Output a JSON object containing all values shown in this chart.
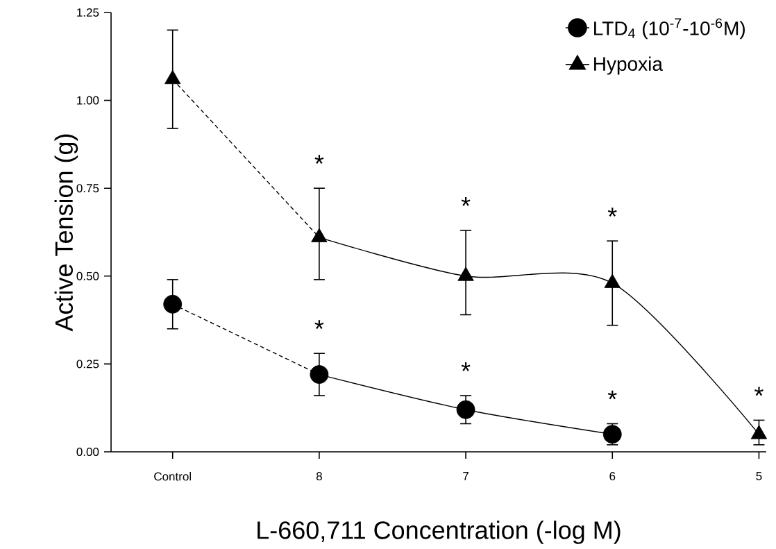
{
  "chart_data": {
    "type": "scatter",
    "xlabel": "L-660,711 Concentration (-log M)",
    "ylabel": "Active Tension (g)",
    "categories": [
      "Control",
      "8",
      "7",
      "6",
      "5"
    ],
    "ylim": [
      0,
      1.25
    ],
    "yticks": [
      {
        "value": 0,
        "label": "0.00"
      },
      {
        "value": 0.25,
        "label": "0.25"
      },
      {
        "value": 0.5,
        "label": "0.50"
      },
      {
        "value": 0.75,
        "label": "0.75"
      },
      {
        "value": 1.0,
        "label": "1.00"
      },
      {
        "value": 1.25,
        "label": "1.25"
      }
    ],
    "series": [
      {
        "name": "LTD$_{4}$ (10$^{-7}$-10$^{-6}$M)",
        "color": "#000000",
        "marker": "circle",
        "values": [
          0.42,
          0.22,
          0.12,
          0.05,
          null
        ],
        "errors": [
          [
            0.35,
            0.49
          ],
          [
            0.16,
            0.28
          ],
          [
            0.08,
            0.16
          ],
          [
            0.02,
            0.08
          ],
          null
        ]
      },
      {
        "name": "Hypoxia",
        "color": "#000000",
        "marker": "triangle",
        "values": [
          1.06,
          0.61,
          0.5,
          0.48,
          0.05
        ],
        "errors": [
          [
            0.92,
            1.2
          ],
          [
            0.49,
            0.75
          ],
          [
            0.39,
            0.63
          ],
          [
            0.36,
            0.6
          ],
          [
            0.02,
            0.09
          ]
        ]
      },
      {
        "type": "line",
        "color": "#000000",
        "marker": "none",
        "line_style": "dashed",
        "values": [
          0.42,
          0.22,
          null,
          null,
          null
        ]
      },
      {
        "type": "line",
        "color": "#000000",
        "marker": "none",
        "line_style": "solid",
        "values": [
          null,
          0.22,
          0.12,
          0.05,
          null
        ]
      },
      {
        "type": "line",
        "color": "#000000",
        "marker": "none",
        "line_style": "dashed",
        "values": [
          1.06,
          0.61,
          null,
          null,
          null
        ]
      },
      {
        "type": "line",
        "color": "#000000",
        "marker": "none",
        "line_style": "solid",
        "values": [
          null,
          0.61,
          0.5,
          0.48,
          0.05
        ]
      }
    ],
    "annotations": [
      {
        "text": "*",
        "x": "8",
        "y": 0.61
      },
      {
        "text": "*",
        "x": "7",
        "y": 0.5
      },
      {
        "text": "*",
        "x": "6",
        "y": 0.48
      },
      {
        "text": "*",
        "x": "5",
        "y": 0.05
      },
      {
        "text": "*",
        "x": "8",
        "y": 0.22
      },
      {
        "text": "*",
        "x": "7",
        "y": 0.12
      },
      {
        "text": "*",
        "x": "6",
        "y": 0.05
      }
    ],
    "legend": "top right",
    "grid": false
  }
}
